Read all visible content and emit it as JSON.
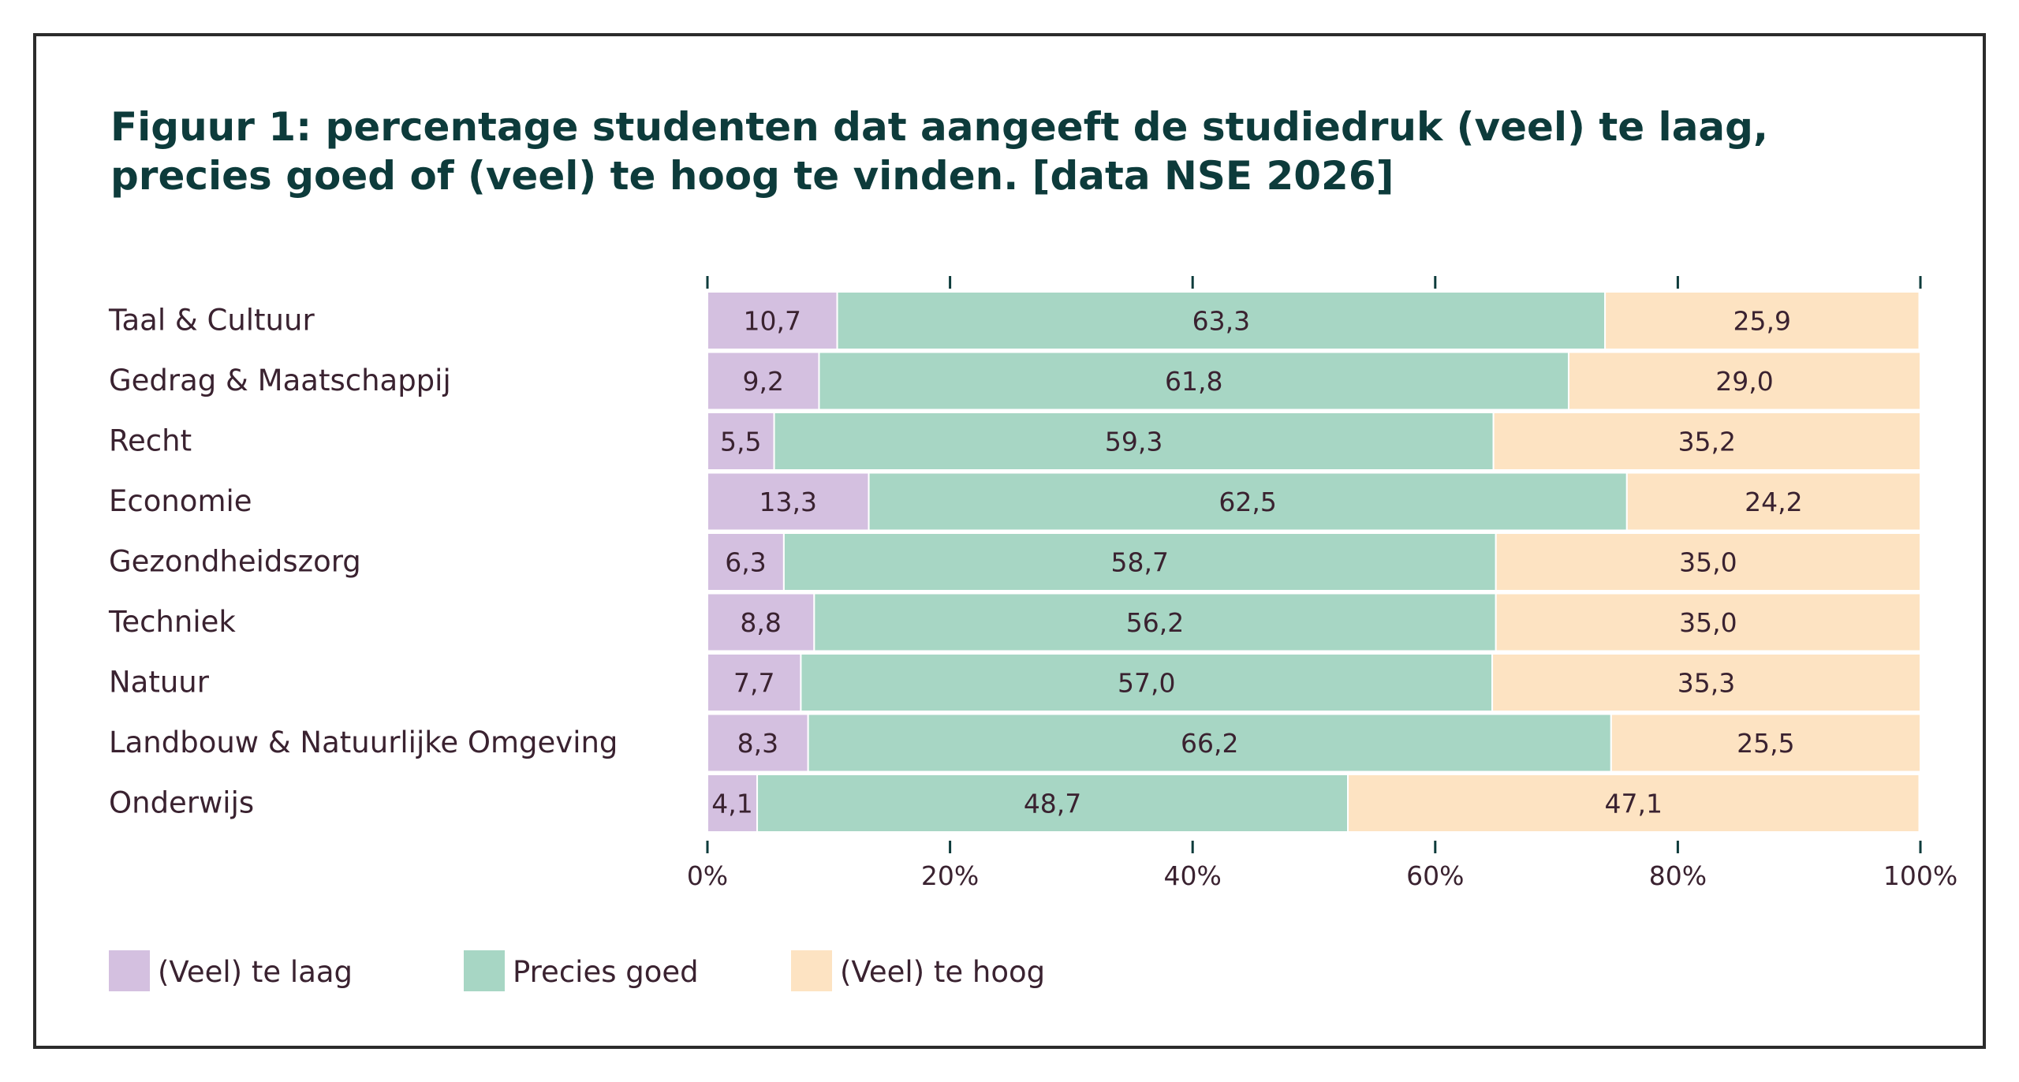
{
  "chart_data": {
    "type": "bar",
    "orientation": "horizontal",
    "stacked": true,
    "title_lines": [
      "Figuur 1: percentage studenten dat aangeeft de studiedruk (veel) te laag,",
      "precies goed of (veel) te hoog te vinden. [data NSE 2026]"
    ],
    "categories": [
      "Taal & Cultuur",
      "Gedrag & Maatschappij",
      "Recht",
      "Economie",
      "Gezondheidszorg",
      "Techniek",
      "Natuur",
      "Landbouw & Natuurlijke Omgeving",
      "Onderwijs"
    ],
    "series": [
      {
        "name": "(Veel) te laag",
        "color": "#d4c0e0",
        "values": [
          10.7,
          9.2,
          5.5,
          13.3,
          6.3,
          8.8,
          7.7,
          8.3,
          4.1
        ],
        "labels": [
          "10,7",
          "9,2",
          "5,5",
          "13,3",
          "6,3",
          "8,8",
          "7,7",
          "8,3",
          "4,1"
        ]
      },
      {
        "name": "Precies goed",
        "color": "#a7d6c4",
        "values": [
          63.3,
          61.8,
          59.3,
          62.5,
          58.7,
          56.2,
          57.0,
          66.2,
          48.7
        ],
        "labels": [
          "63,3",
          "61,8",
          "59,3",
          "62,5",
          "58,7",
          "56,2",
          "57,0",
          "66,2",
          "48,7"
        ]
      },
      {
        "name": "(Veel) te hoog",
        "color": "#fde3c2",
        "values": [
          25.9,
          29.0,
          35.2,
          24.2,
          35.0,
          35.0,
          35.3,
          25.5,
          47.1
        ],
        "labels": [
          "25,9",
          "29,0",
          "35,2",
          "24,2",
          "35,0",
          "35,0",
          "35,3",
          "25,5",
          "47,1"
        ]
      }
    ],
    "xlim": [
      0,
      100
    ],
    "ticks": [
      0,
      20,
      40,
      60,
      80,
      100
    ],
    "tick_labels": [
      "0%",
      "20%",
      "40%",
      "60%",
      "80%",
      "100%"
    ],
    "grid": false,
    "legend_position": "bottom-left",
    "axis_color": "#0d3b3b",
    "text_color": "#3a2230",
    "title_color": "#0d3b3b"
  }
}
